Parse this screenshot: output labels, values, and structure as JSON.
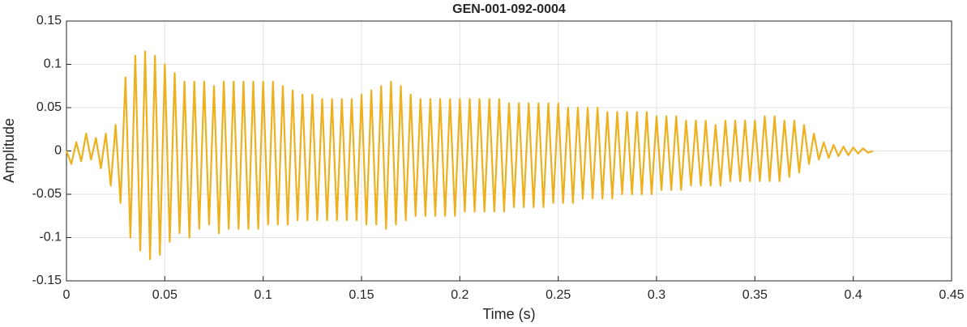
{
  "chart_data": {
    "type": "line",
    "title": "GEN-001-092-0004",
    "x_label": "Time (s)",
    "y_label": "Amplitude",
    "xlim": [
      0,
      0.45
    ],
    "ylim": [
      -0.15,
      0.15
    ],
    "xticks": [
      0,
      0.05,
      0.1,
      0.15,
      0.2,
      0.25,
      0.3,
      0.35,
      0.4,
      0.45
    ],
    "yticks": [
      -0.15,
      -0.1,
      -0.05,
      0,
      0.05,
      0.1,
      0.15
    ],
    "grid": true,
    "x": [
      0,
      0.0025,
      0.005,
      0.0075,
      0.01,
      0.0125,
      0.015,
      0.0175,
      0.02,
      0.0225,
      0.025,
      0.0275,
      0.03,
      0.0325,
      0.035,
      0.0375,
      0.04,
      0.0425,
      0.045,
      0.0475,
      0.05,
      0.0525,
      0.055,
      0.0575,
      0.06,
      0.0625,
      0.065,
      0.0675,
      0.07,
      0.0725,
      0.075,
      0.0775,
      0.08,
      0.0825,
      0.085,
      0.0875,
      0.09,
      0.0925,
      0.095,
      0.0975,
      0.1,
      0.1025,
      0.105,
      0.1075,
      0.11,
      0.1125,
      0.115,
      0.1175,
      0.12,
      0.1225,
      0.125,
      0.1275,
      0.13,
      0.1325,
      0.135,
      0.1375,
      0.14,
      0.1425,
      0.145,
      0.1475,
      0.15,
      0.1525,
      0.155,
      0.1575,
      0.16,
      0.1625,
      0.165,
      0.1675,
      0.17,
      0.1725,
      0.175,
      0.1775,
      0.18,
      0.1825,
      0.185,
      0.1875,
      0.19,
      0.1925,
      0.195,
      0.1975,
      0.2,
      0.2025,
      0.205,
      0.2075,
      0.21,
      0.2125,
      0.215,
      0.2175,
      0.22,
      0.2225,
      0.225,
      0.2275,
      0.23,
      0.2325,
      0.235,
      0.2375,
      0.24,
      0.2425,
      0.245,
      0.2475,
      0.25,
      0.2525,
      0.255,
      0.2575,
      0.26,
      0.2625,
      0.265,
      0.2675,
      0.27,
      0.2725,
      0.275,
      0.2775,
      0.28,
      0.2825,
      0.285,
      0.2875,
      0.29,
      0.2925,
      0.295,
      0.2975,
      0.3,
      0.3025,
      0.305,
      0.3075,
      0.31,
      0.3125,
      0.315,
      0.3175,
      0.32,
      0.3225,
      0.325,
      0.3275,
      0.33,
      0.3325,
      0.335,
      0.3375,
      0.34,
      0.3425,
      0.345,
      0.3475,
      0.35,
      0.3525,
      0.355,
      0.3575,
      0.36,
      0.3625,
      0.365,
      0.3675,
      0.37,
      0.3725,
      0.375,
      0.3775,
      0.38,
      0.3825,
      0.385,
      0.3875,
      0.39,
      0.3925,
      0.395,
      0.3975,
      0.4,
      0.4025,
      0.405,
      0.4075,
      0.41
    ],
    "series": [
      {
        "color": "#EDB120",
        "values": [
          0,
          -0.015,
          0.01,
          -0.012,
          0.02,
          -0.01,
          0.015,
          -0.02,
          0.02,
          -0.04,
          0.03,
          -0.06,
          0.085,
          -0.1,
          0.11,
          -0.115,
          0.115,
          -0.125,
          0.11,
          -0.12,
          0.1,
          -0.105,
          0.09,
          -0.095,
          0.08,
          -0.1,
          0.08,
          -0.09,
          0.08,
          -0.085,
          0.075,
          -0.095,
          0.08,
          -0.09,
          0.08,
          -0.09,
          0.08,
          -0.09,
          0.08,
          -0.09,
          0.08,
          -0.085,
          0.08,
          -0.085,
          0.075,
          -0.085,
          0.07,
          -0.08,
          0.065,
          -0.08,
          0.065,
          -0.08,
          0.06,
          -0.08,
          0.06,
          -0.08,
          0.06,
          -0.08,
          0.06,
          -0.08,
          0.065,
          -0.085,
          0.07,
          -0.085,
          0.075,
          -0.09,
          0.08,
          -0.085,
          0.075,
          -0.08,
          0.065,
          -0.075,
          0.06,
          -0.075,
          0.06,
          -0.075,
          0.06,
          -0.075,
          0.06,
          -0.075,
          0.06,
          -0.07,
          0.06,
          -0.07,
          0.06,
          -0.07,
          0.06,
          -0.07,
          0.06,
          -0.07,
          0.055,
          -0.065,
          0.055,
          -0.065,
          0.055,
          -0.065,
          0.055,
          -0.065,
          0.055,
          -0.06,
          0.055,
          -0.06,
          0.05,
          -0.06,
          0.05,
          -0.055,
          0.05,
          -0.055,
          0.05,
          -0.055,
          0.045,
          -0.055,
          0.045,
          -0.05,
          0.045,
          -0.05,
          0.045,
          -0.05,
          0.045,
          -0.05,
          0.04,
          -0.045,
          0.04,
          -0.045,
          0.04,
          -0.045,
          0.035,
          -0.04,
          0.035,
          -0.04,
          0.035,
          -0.04,
          0.03,
          -0.04,
          0.035,
          -0.035,
          0.035,
          -0.035,
          0.035,
          -0.035,
          0.035,
          -0.035,
          0.04,
          -0.035,
          0.04,
          -0.035,
          0.035,
          -0.03,
          0.035,
          -0.025,
          0.03,
          -0.015,
          0.02,
          -0.01,
          0.01,
          -0.008,
          0.007,
          -0.006,
          0.005,
          -0.005,
          0.004,
          -0.003,
          0.003,
          -0.002,
          0
        ]
      }
    ]
  }
}
